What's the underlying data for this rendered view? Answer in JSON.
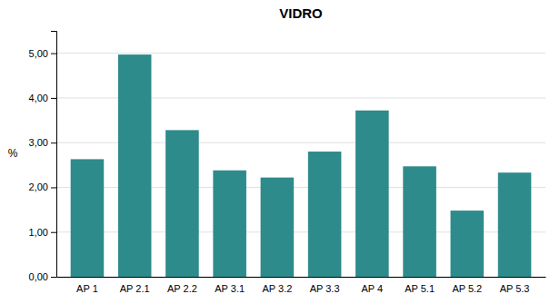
{
  "chart_data": {
    "type": "bar",
    "title": "VIDRO",
    "ylabel": "%",
    "categories": [
      "AP 1",
      "AP 2.1",
      "AP 2.2",
      "AP 3.1",
      "AP 3.2",
      "AP 3.3",
      "AP 4",
      "AP 5.1",
      "AP 5.2",
      "AP 5.3"
    ],
    "values": [
      2.63,
      4.97,
      3.28,
      2.38,
      2.22,
      2.8,
      3.72,
      2.47,
      1.48,
      2.33
    ],
    "color": "#2e8b8b",
    "ylim": [
      0,
      5.5
    ],
    "yticks": [
      {
        "value": 0.0,
        "label": "0,00"
      },
      {
        "value": 1.0,
        "label": "1,00"
      },
      {
        "value": 2.0,
        "label": "2,00"
      },
      {
        "value": 3.0,
        "label": "3,00"
      },
      {
        "value": 4.0,
        "label": "4,00"
      },
      {
        "value": 5.0,
        "label": "5,00"
      }
    ],
    "grid": true
  }
}
